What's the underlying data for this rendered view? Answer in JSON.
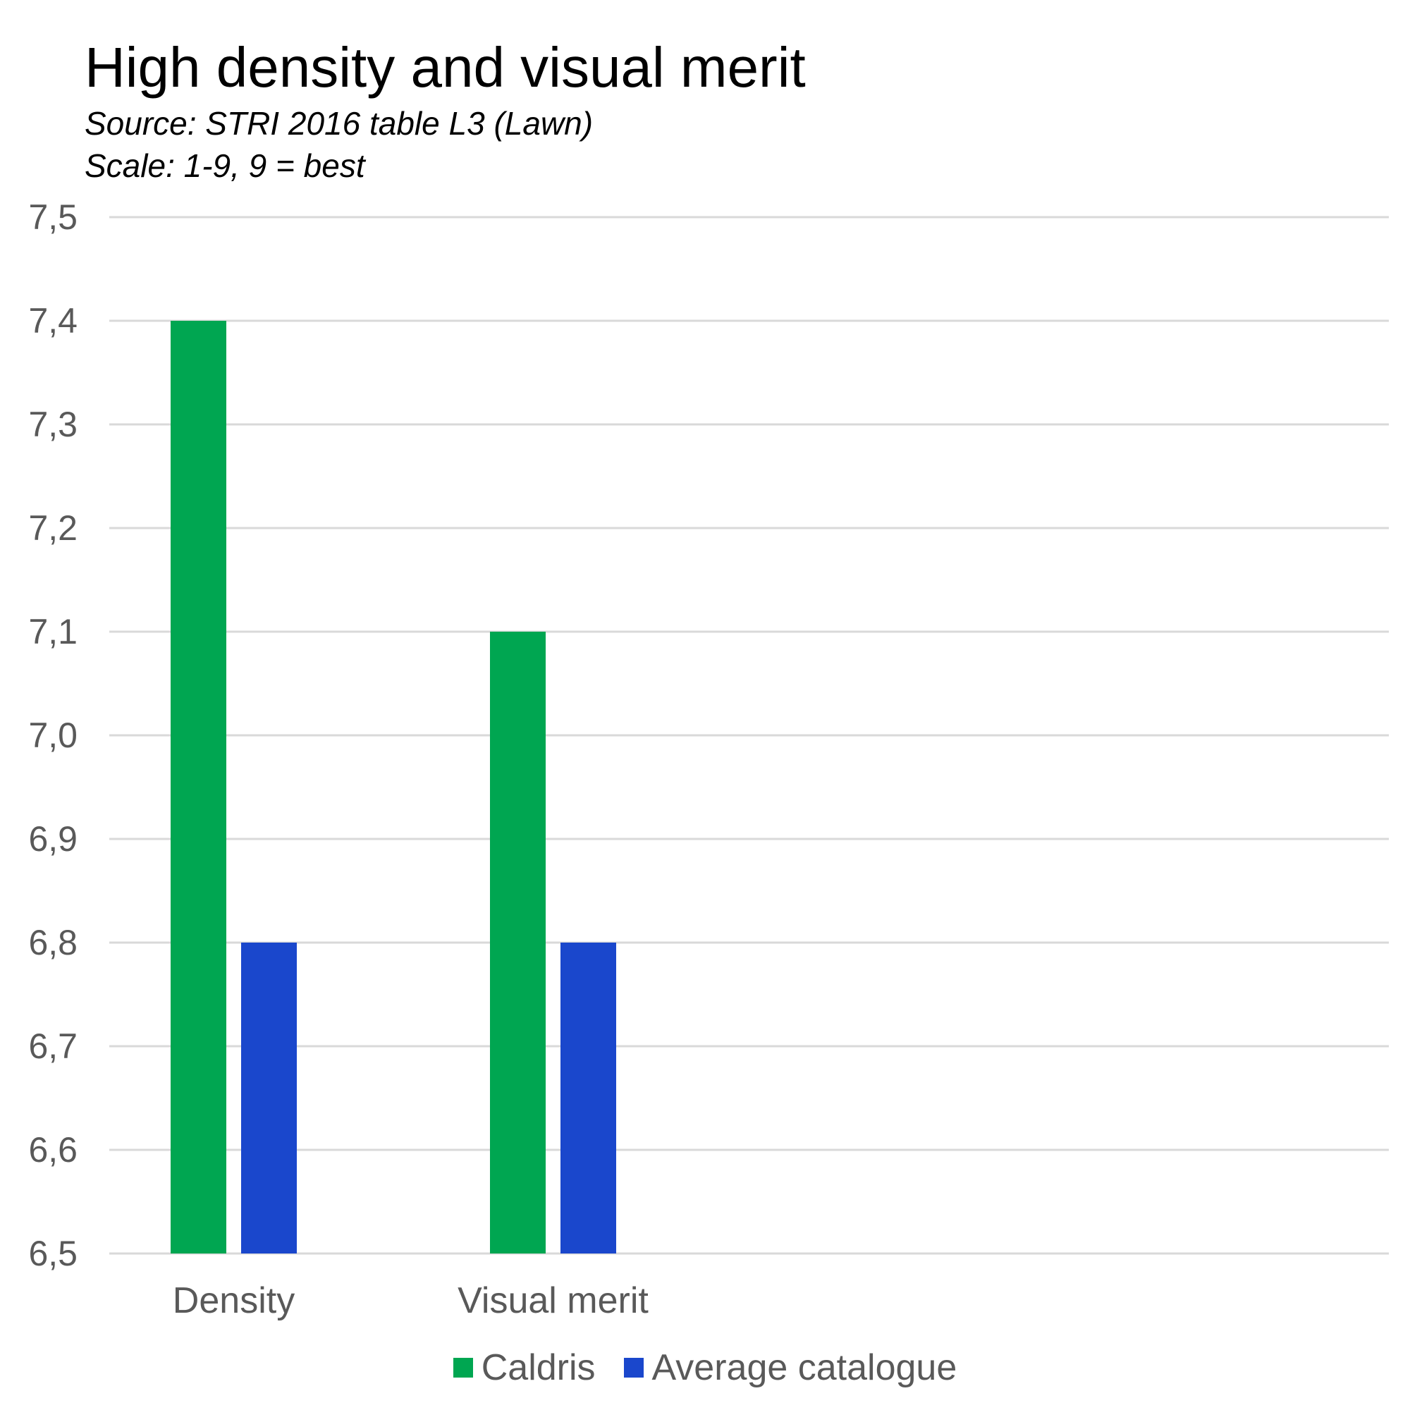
{
  "chart_data": {
    "type": "bar",
    "title": "High density and visual merit",
    "subtitle": [
      "Source: STRI 2016 table L3 (Lawn)",
      "Scale: 1-9, 9 = best"
    ],
    "categories": [
      "Density",
      "Visual merit"
    ],
    "series": [
      {
        "name": "Caldris",
        "color": "#00a651",
        "values": [
          7.4,
          7.1
        ]
      },
      {
        "name": "Average catalogue",
        "color": "#1a47cc",
        "values": [
          6.8,
          6.8
        ]
      }
    ],
    "ylim": [
      6.5,
      7.5
    ],
    "yticks": [
      "6,5",
      "6,6",
      "6,7",
      "6,8",
      "6,9",
      "7,0",
      "7,1",
      "7,2",
      "7,3",
      "7,4",
      "7,5"
    ],
    "grid": true,
    "legend_position": "bottom"
  }
}
